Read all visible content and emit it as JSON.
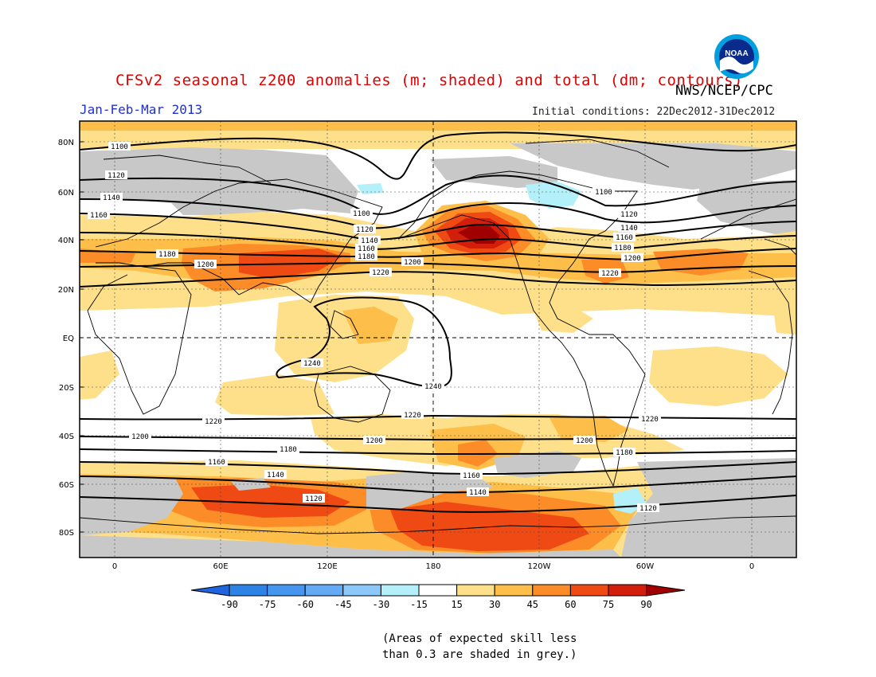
{
  "header": {
    "title": "CFSv2 seasonal z200 anomalies (m; shaded) and total (dm; contours)",
    "agency": "NWS/NCEP/CPC",
    "season": "Jan-Feb-Mar 2013",
    "initial_conditions": "Initial conditions: 22Dec2012-31Dec2012",
    "logo_text": "NOAA"
  },
  "map": {
    "lat_labels": [
      "80N",
      "60N",
      "40N",
      "20N",
      "EQ",
      "20S",
      "40S",
      "60S",
      "80S"
    ],
    "lon_labels": [
      "0",
      "60E",
      "120E",
      "180",
      "120W",
      "60W",
      "0"
    ],
    "contour_labels": [
      "1100",
      "1120",
      "1140",
      "1160",
      "1180",
      "1200",
      "1220",
      "1240"
    ],
    "grey_meaning": "expected skill less than 0.3"
  },
  "colorbar": {
    "ticks": [
      "-90",
      "-75",
      "-60",
      "-45",
      "-30",
      "-15",
      "15",
      "30",
      "45",
      "60",
      "75",
      "90"
    ],
    "colors": [
      "#1e64dc",
      "#2d82e6",
      "#4696f0",
      "#64aaf5",
      "#8cc8fa",
      "#b4f0fa",
      "#ffffff",
      "#fee08a",
      "#fdbf4a",
      "#fb8c28",
      "#f04a14",
      "#d21e0a",
      "#a00000"
    ]
  },
  "note": {
    "line1": "(Areas of expected skill less",
    "line2": "than 0.3 are shaded in grey.)"
  }
}
